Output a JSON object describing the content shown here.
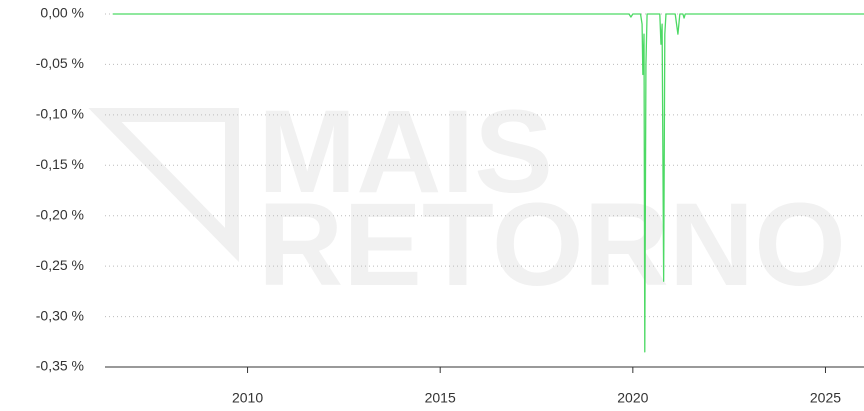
{
  "chart_data": {
    "type": "line",
    "watermark": [
      "MAIS",
      "RETORNO"
    ],
    "xlim": [
      2006.3,
      2026.0
    ],
    "xticks": [
      2010,
      2015,
      2020,
      2025
    ],
    "ylim": [
      -0.35,
      0.0
    ],
    "yticks": [
      {
        "value": 0.0,
        "label": "0,00 %"
      },
      {
        "value": -0.05,
        "label": "-0,05 %"
      },
      {
        "value": -0.1,
        "label": "-0,10 %"
      },
      {
        "value": -0.15,
        "label": "-0,15 %"
      },
      {
        "value": -0.2,
        "label": "-0,20 %"
      },
      {
        "value": -0.25,
        "label": "-0,25 %"
      },
      {
        "value": -0.3,
        "label": "-0,30 %"
      },
      {
        "value": -0.35,
        "label": "-0,35 %"
      }
    ],
    "grid": true,
    "series": [
      {
        "color": "#4cd964",
        "x": [
          2006.5,
          2019.9,
          2019.95,
          2020.0,
          2020.2,
          2020.24,
          2020.26,
          2020.29,
          2020.31,
          2020.34,
          2020.37,
          2020.7,
          2020.73,
          2020.76,
          2020.8,
          2020.83,
          2020.86,
          2021.1,
          2021.17,
          2021.22,
          2021.3,
          2021.33,
          2021.36,
          2026.0
        ],
        "values": [
          0.0,
          0.0,
          -0.003,
          0.0,
          0.0,
          -0.01,
          -0.06,
          -0.02,
          -0.335,
          -0.05,
          0.0,
          0.0,
          -0.03,
          -0.01,
          -0.265,
          -0.02,
          0.0,
          0.0,
          -0.02,
          0.0,
          0.0,
          -0.004,
          0.0,
          0.0
        ]
      }
    ]
  }
}
